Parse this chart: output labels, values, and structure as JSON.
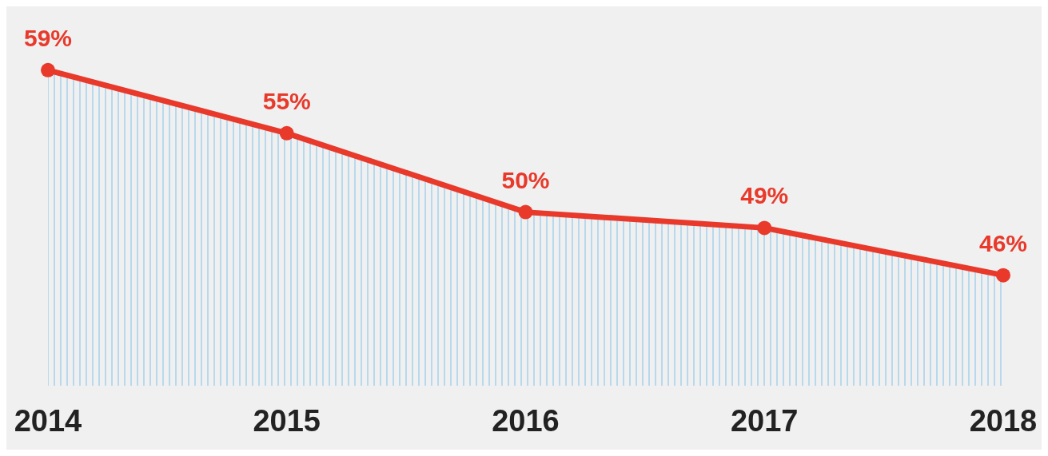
{
  "chart_data": {
    "type": "area",
    "categories": [
      "2014",
      "2015",
      "2016",
      "2017",
      "2018"
    ],
    "series": [
      {
        "color": "#e8392b",
        "values": [
          59,
          55,
          50,
          49,
          46
        ],
        "value_labels": [
          "59%",
          "55%",
          "50%",
          "49%",
          "46%"
        ]
      }
    ],
    "marker": "circle",
    "line_style": "solid",
    "tick_labels": "x"
  }
}
